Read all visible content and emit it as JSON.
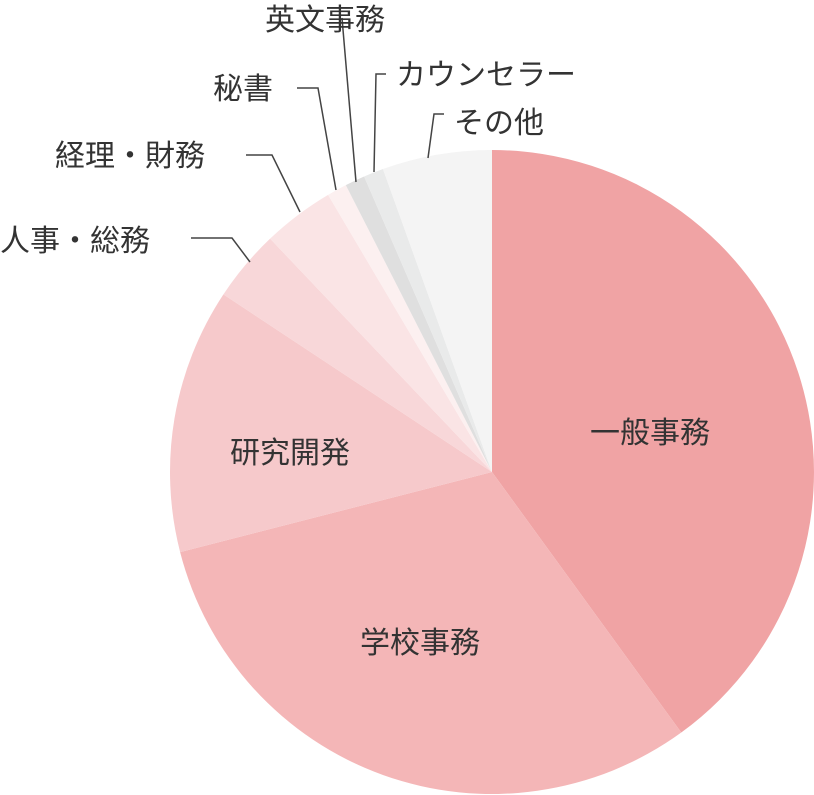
{
  "chart_data": {
    "type": "pie",
    "title": "",
    "start": "top, clockwise",
    "slices": [
      {
        "label": "一般事務",
        "value": 40,
        "color": "#f0a3a4",
        "label_position": "inside"
      },
      {
        "label": "学校事務",
        "value": 31,
        "color": "#f4b6b7",
        "label_position": "inside"
      },
      {
        "label": "研究開発",
        "value": 13.3,
        "color": "#f6c9cb",
        "label_position": "inside"
      },
      {
        "label": "人事・総務",
        "value": 3.6,
        "color": "#f8d7d9",
        "label_position": "outside"
      },
      {
        "label": "経理・財務",
        "value": 3.6,
        "color": "#fae4e5",
        "label_position": "outside"
      },
      {
        "label": "秘書",
        "value": 1.0,
        "color": "#fcf0f0",
        "label_position": "outside"
      },
      {
        "label": "英文事務",
        "value": 1.0,
        "color": "#dfdfdf",
        "label_position": "outside"
      },
      {
        "label": "カウンセラー",
        "value": 1.0,
        "color": "#e9eaea",
        "label_position": "outside"
      },
      {
        "label": "その他",
        "value": 5.5,
        "color": "#f4f4f4",
        "label_position": "outside"
      }
    ]
  }
}
